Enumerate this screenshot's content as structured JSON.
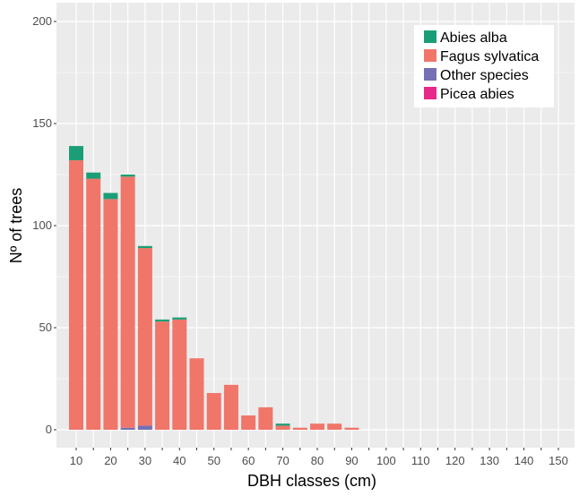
{
  "chart_data": {
    "type": "bar",
    "stacked": true,
    "xlabel": "DBH classes (cm)",
    "ylabel": "Nº of trees",
    "ylim": [
      0,
      200
    ],
    "yticks": [
      0,
      50,
      100,
      150,
      200
    ],
    "x_categories": [
      10,
      15,
      20,
      25,
      30,
      35,
      40,
      45,
      50,
      55,
      60,
      65,
      70,
      75,
      80,
      85,
      90,
      95,
      100,
      105,
      110,
      115,
      120,
      125,
      130,
      135,
      140,
      145,
      150
    ],
    "x_tick_labels": [
      "10",
      "20",
      "30",
      "40",
      "50",
      "60",
      "70",
      "80",
      "90",
      "100",
      "110",
      "120",
      "130",
      "140",
      "150"
    ],
    "grid": true,
    "background": "#ebebeb",
    "legend_position": "top-right",
    "series": [
      {
        "name": "Picea abies",
        "color": "#e7298a",
        "values": [
          0,
          0,
          0,
          0,
          0,
          0,
          0,
          0,
          0,
          0,
          0,
          0,
          0,
          0,
          0,
          0,
          0,
          0,
          0,
          0,
          0,
          0,
          0,
          0,
          0,
          0,
          0,
          0,
          0
        ]
      },
      {
        "name": "Other species",
        "color": "#7570b3",
        "values": [
          0,
          0,
          0,
          1,
          2,
          0,
          0,
          0,
          0,
          0,
          0,
          0,
          0,
          0,
          0,
          0,
          0,
          0,
          0,
          0,
          0,
          0,
          0,
          0,
          0,
          0,
          0,
          0,
          0
        ]
      },
      {
        "name": "Fagus sylvatica",
        "color": "#f0766a",
        "values": [
          132,
          123,
          113,
          123,
          87,
          53,
          54,
          35,
          18,
          22,
          7,
          11,
          2,
          1,
          3,
          3,
          1,
          0,
          0,
          0,
          0,
          0,
          0,
          0,
          0,
          0,
          0,
          0,
          0
        ]
      },
      {
        "name": "Abies alba",
        "color": "#1b9e77",
        "values": [
          7,
          3,
          3,
          1,
          1,
          1,
          1,
          0,
          0,
          0,
          0,
          0,
          1,
          0,
          0,
          0,
          0,
          0,
          0,
          0,
          0,
          0,
          0,
          0,
          0,
          0,
          0,
          0,
          0
        ]
      }
    ],
    "legend_order": [
      "Abies alba",
      "Fagus sylvatica",
      "Other species",
      "Picea abies"
    ]
  }
}
